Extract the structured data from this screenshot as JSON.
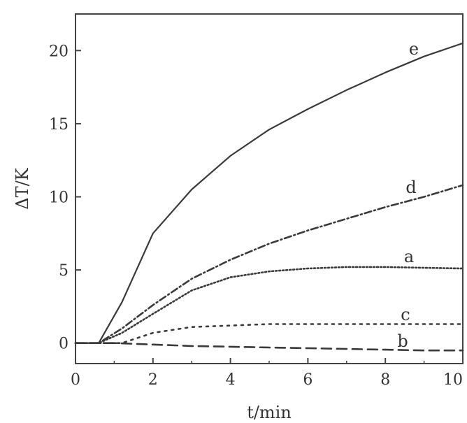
{
  "chart_data": {
    "type": "line",
    "title": "",
    "xlabel": "t/min",
    "ylabel": "ΔT/K",
    "xlim": [
      0,
      10
    ],
    "ylim": [
      -1.4,
      22.5
    ],
    "x_ticks": [
      0,
      2,
      4,
      6,
      8,
      10
    ],
    "x_tick_labels": [
      "0",
      "2",
      "4",
      "6",
      "8",
      "10"
    ],
    "y_ticks": [
      0,
      5,
      10,
      15,
      20
    ],
    "y_tick_labels": [
      "0",
      "5",
      "10",
      "15",
      "20"
    ],
    "grid": false,
    "legend": "none",
    "series": [
      {
        "label": "e",
        "style": "solid",
        "color": "#3a3a3a",
        "points": [
          [
            0,
            0
          ],
          [
            0.6,
            0
          ],
          [
            1.2,
            2.8
          ],
          [
            2,
            7.5
          ],
          [
            3,
            10.5
          ],
          [
            4,
            12.8
          ],
          [
            5,
            14.6
          ],
          [
            6,
            16.0
          ],
          [
            7,
            17.3
          ],
          [
            8,
            18.5
          ],
          [
            9,
            19.6
          ],
          [
            10,
            20.5
          ]
        ]
      },
      {
        "label": "d",
        "style": "dash-dot",
        "color": "#3a3a3a",
        "points": [
          [
            0,
            0
          ],
          [
            0.6,
            0
          ],
          [
            1.2,
            1.0
          ],
          [
            2,
            2.6
          ],
          [
            3,
            4.4
          ],
          [
            4,
            5.7
          ],
          [
            5,
            6.8
          ],
          [
            6,
            7.7
          ],
          [
            7,
            8.5
          ],
          [
            8,
            9.3
          ],
          [
            9,
            10.0
          ],
          [
            10,
            10.8
          ]
        ]
      },
      {
        "label": "a",
        "style": "dotted",
        "color": "#3a3a3a",
        "points": [
          [
            0,
            0
          ],
          [
            0.6,
            0
          ],
          [
            1.2,
            0.7
          ],
          [
            2,
            2.0
          ],
          [
            3,
            3.6
          ],
          [
            4,
            4.5
          ],
          [
            5,
            4.9
          ],
          [
            6,
            5.1
          ],
          [
            7,
            5.2
          ],
          [
            8,
            5.2
          ],
          [
            9,
            5.15
          ],
          [
            10,
            5.1
          ]
        ]
      },
      {
        "label": "c",
        "style": "dotted-sparse",
        "color": "#3a3a3a",
        "points": [
          [
            0,
            0
          ],
          [
            1.2,
            0
          ],
          [
            2,
            0.7
          ],
          [
            3,
            1.1
          ],
          [
            4,
            1.2
          ],
          [
            5,
            1.3
          ],
          [
            6,
            1.3
          ],
          [
            7,
            1.3
          ],
          [
            8,
            1.3
          ],
          [
            9,
            1.3
          ],
          [
            10,
            1.3
          ]
        ]
      },
      {
        "label": "b",
        "style": "dashed",
        "color": "#3a3a3a",
        "points": [
          [
            0,
            0
          ],
          [
            1.0,
            0
          ],
          [
            2,
            -0.1
          ],
          [
            3,
            -0.2
          ],
          [
            4,
            -0.25
          ],
          [
            5,
            -0.3
          ],
          [
            6,
            -0.35
          ],
          [
            7,
            -0.4
          ],
          [
            8,
            -0.45
          ],
          [
            9,
            -0.5
          ],
          [
            10,
            -0.5
          ]
        ]
      }
    ]
  }
}
